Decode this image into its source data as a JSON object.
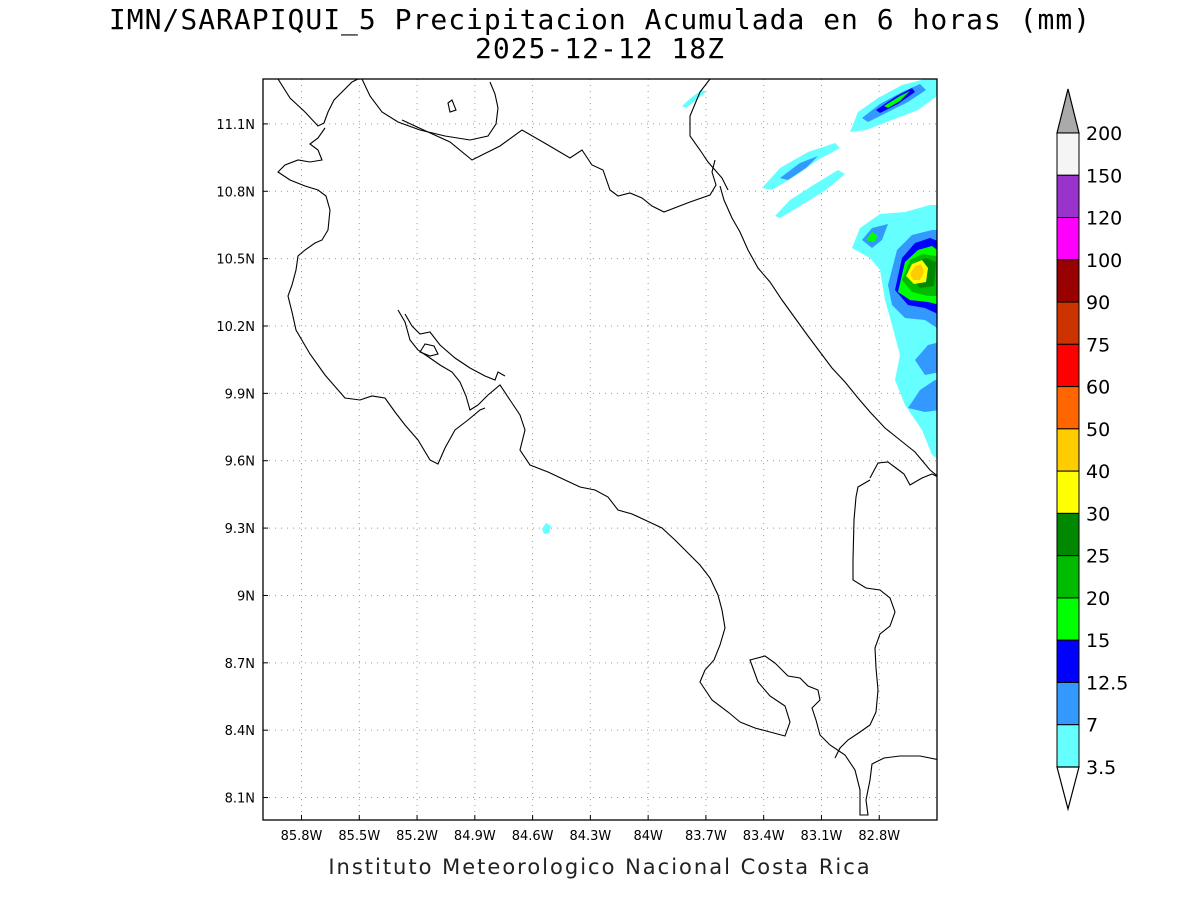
{
  "header": {
    "title": "IMN/SARAPIQUI_5 Precipitacion Acumulada en 6 horas (mm)",
    "datetime": "2025-12-12 18Z"
  },
  "footer": {
    "credit": "Instituto Meteorologico Nacional Costa Rica"
  },
  "axes": {
    "lon_labels": [
      "85.8W",
      "85.5W",
      "85.2W",
      "84.9W",
      "84.6W",
      "84.3W",
      "84W",
      "83.7W",
      "83.4W",
      "83.1W",
      "82.8W"
    ],
    "lat_labels": [
      "11.1N",
      "10.8N",
      "10.5N",
      "10.2N",
      "9.9N",
      "9.6N",
      "9.3N",
      "9N",
      "8.7N",
      "8.4N",
      "8.1N"
    ],
    "lon_range": [
      -86.0,
      -82.5
    ],
    "lat_range": [
      8.0,
      11.3
    ],
    "grid": "dotted"
  },
  "colorbar": {
    "levels": [
      "200",
      "150",
      "120",
      "100",
      "90",
      "75",
      "60",
      "50",
      "40",
      "30",
      "25",
      "20",
      "15",
      "12.5",
      "7",
      "3.5"
    ],
    "colors": [
      "#f5f5f5",
      "#9933cc",
      "#ff00ff",
      "#990000",
      "#cc3300",
      "#ff0000",
      "#ff6600",
      "#ffcc00",
      "#ffff00",
      "#008800",
      "#00bb00",
      "#00ff00",
      "#0000ff",
      "#3399ff",
      "#66ffff"
    ],
    "top_arrow_color": "#aaaaaa",
    "bottom_arrow_color": "#ffffff"
  }
}
